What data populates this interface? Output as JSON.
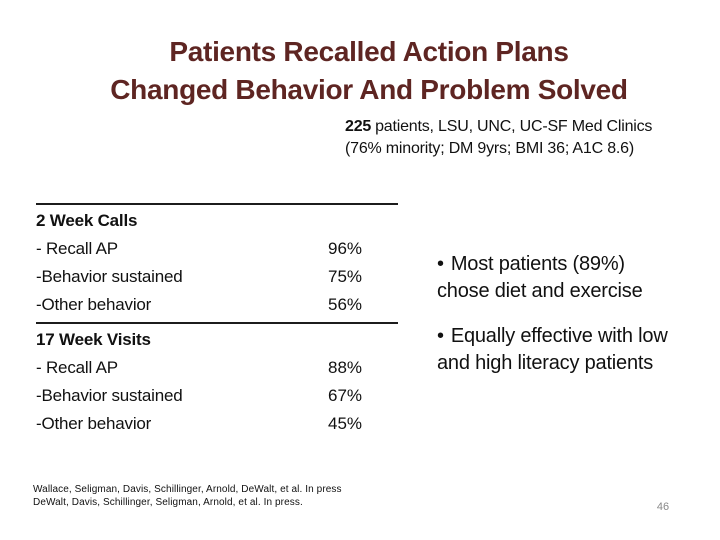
{
  "colors": {
    "title_text": "#5e2522",
    "body_text": "#111111",
    "rule": "#1c1c1c",
    "page_number": "#898989",
    "background": "#ffffff"
  },
  "title": {
    "lines": [
      "Patients Recalled Action Plans",
      "Changed Behavior And Problem Solved"
    ]
  },
  "subtitle": {
    "count": "225",
    "line1_rest": "patients, LSU, UNC, UC-SF Med Clinics",
    "line2": "(76% minority; DM 9yrs; BMI 36; A1C 8.6)"
  },
  "table": {
    "sections": [
      {
        "header": "2 Week Calls",
        "rows": [
          {
            "label": "- Recall AP",
            "value": "96%"
          },
          {
            "label": "-Behavior sustained",
            "value": "75%"
          },
          {
            "label": "-Other behavior",
            "value": "56%"
          }
        ]
      },
      {
        "header": "17 Week Visits",
        "rows": [
          {
            "label": "- Recall AP",
            "value": "88%"
          },
          {
            "label": "-Behavior sustained",
            "value": "67%"
          },
          {
            "label": "-Other behavior",
            "value": "45%"
          }
        ]
      }
    ]
  },
  "bullets": {
    "glyph": "•",
    "items": [
      "Most patients (89%) chose diet and exercise",
      "Equally effective with low and high literacy patients"
    ]
  },
  "footer": {
    "citations": [
      "Wallace, Seligman, Davis, Schillinger, Arnold, DeWalt, et al. In press",
      "DeWalt, Davis, Schillinger, Seligman, Arnold, et al. In press."
    ],
    "page_number": "46"
  }
}
